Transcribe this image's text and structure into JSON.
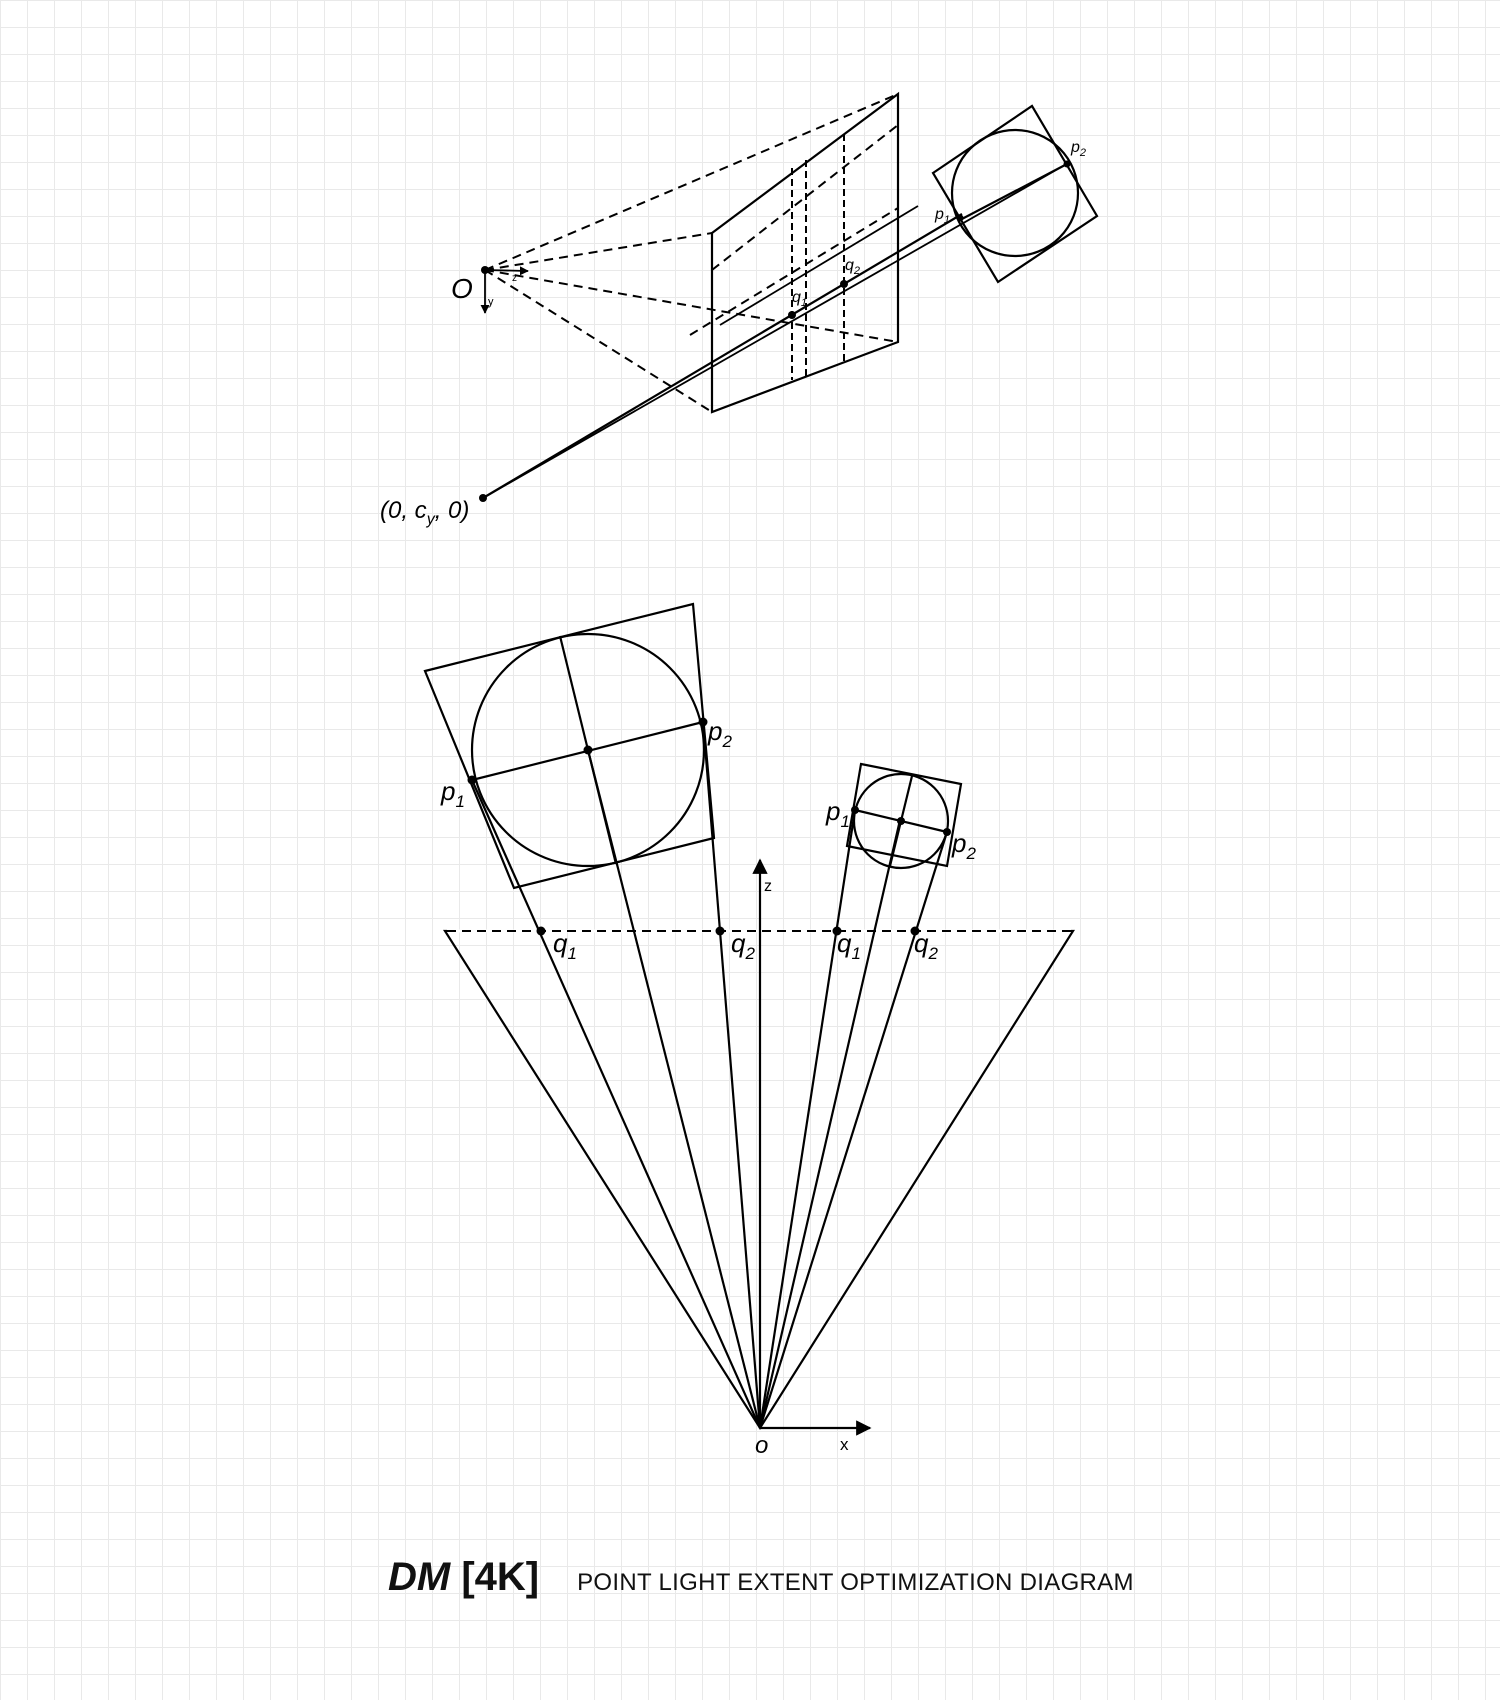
{
  "diagram": {
    "top_view": {
      "origin_label": "O",
      "y_axis_label": "y",
      "z_axis_label": "z",
      "point_label": "(0, c",
      "point_label_sub": "y",
      "point_label_end": ", 0)",
      "p1": "p",
      "p2": "p",
      "q1": "q",
      "q2": "q",
      "sub1": "1",
      "sub2": "2"
    },
    "bottom_view": {
      "origin_label": "o",
      "x_axis_label": "x",
      "z_axis_label": "z",
      "p": "p",
      "q": "q",
      "sub1": "1",
      "sub2": "2"
    }
  },
  "caption": {
    "brand_italic": "DM",
    "brand_bracket": "[4K]",
    "title": "POINT LIGHT EXTENT OPTIMIZATION DIAGRAM"
  }
}
